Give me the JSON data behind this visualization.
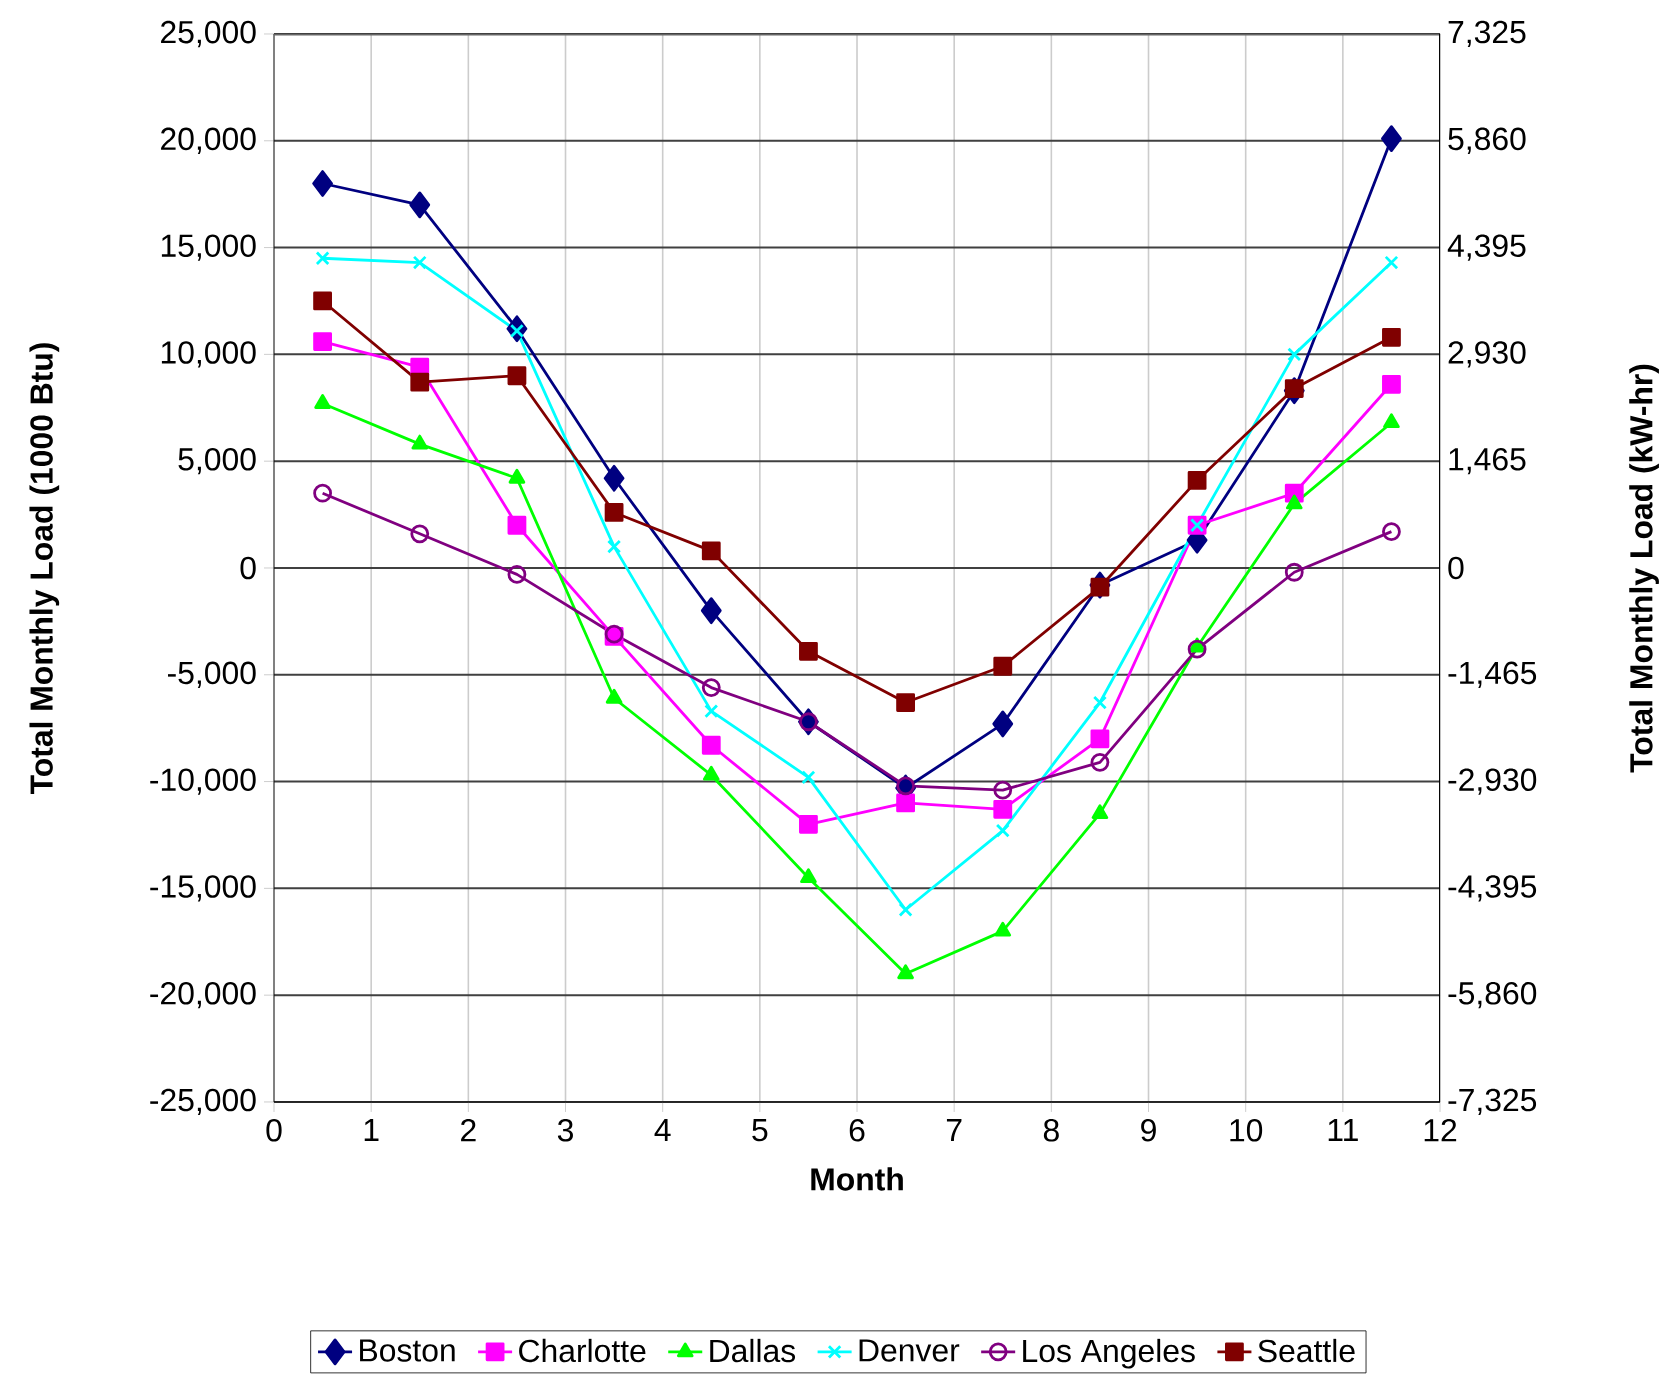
{
  "chart_data": {
    "type": "line",
    "xlabel": "Month",
    "ylabel": "Total Monthly Load (1000 Btu)",
    "y2label": "Total Monthly Load (kW-hr)",
    "x": [
      0.5,
      1.5,
      2.5,
      3.5,
      4.5,
      5.5,
      6.5,
      7.5,
      8.5,
      9.5,
      10.5,
      11.5
    ],
    "xlim": [
      0,
      12
    ],
    "xticks": [
      0,
      1,
      2,
      3,
      4,
      5,
      6,
      7,
      8,
      9,
      10,
      11,
      12
    ],
    "ylim": [
      -25000,
      25000
    ],
    "yticks": [
      {
        "value": -25000,
        "label": "-25,000"
      },
      {
        "value": -20000,
        "label": "-20,000"
      },
      {
        "value": -15000,
        "label": "-15,000"
      },
      {
        "value": -10000,
        "label": "-10,000"
      },
      {
        "value": -5000,
        "label": "-5,000"
      },
      0,
      {
        "value": 5000,
        "label": "5,000"
      },
      {
        "value": 10000,
        "label": "10,000"
      },
      {
        "value": 15000,
        "label": "15,000"
      },
      {
        "value": 20000,
        "label": "20,000"
      },
      {
        "value": 25000,
        "label": "25,000"
      }
    ],
    "y2lim": [
      -7325,
      7325
    ],
    "y2ticks": [
      {
        "value": -7325,
        "label": "-7,325"
      },
      {
        "value": -5860,
        "label": "-5,860"
      },
      {
        "value": -4395,
        "label": "-4,395"
      },
      {
        "value": -2930,
        "label": "-2,930"
      },
      {
        "value": -1465,
        "label": "-1,465"
      },
      0,
      {
        "value": 1465,
        "label": "1,465"
      },
      {
        "value": 2930,
        "label": "2,930"
      },
      {
        "value": 4395,
        "label": "4,395"
      },
      {
        "value": 5860,
        "label": "5,860"
      },
      {
        "value": 7325,
        "label": "7,325"
      }
    ],
    "grid": true,
    "legend": "bottom",
    "line_style": "solid",
    "series": [
      {
        "name": "Boston",
        "color": "#000080",
        "marker": "diamond",
        "values": [
          18000,
          17000,
          11200,
          4200,
          -2000,
          -7200,
          -10300,
          -7300,
          -800,
          1300,
          8300,
          20100
        ]
      },
      {
        "name": "Charlotte",
        "color": "#ff00ff",
        "marker": "square",
        "values": [
          10600,
          9400,
          2000,
          -3200,
          -8300,
          -12000,
          -11000,
          -11300,
          -8000,
          2000,
          3500,
          8600
        ]
      },
      {
        "name": "Dallas",
        "color": "#00ff00",
        "marker": "triangle",
        "values": [
          7700,
          5800,
          4200,
          -6100,
          -9700,
          -14500,
          -19000,
          -17000,
          -11500,
          -3700,
          3000,
          6800
        ]
      },
      {
        "name": "Denver",
        "color": "#00ffff",
        "marker": "cross",
        "values": [
          14500,
          14300,
          11100,
          1000,
          -6700,
          -9800,
          -16000,
          -12300,
          -6300,
          2000,
          10000,
          14300
        ]
      },
      {
        "name": "Los Angeles",
        "color": "#800080",
        "marker": "circle",
        "values": [
          3500,
          1600,
          -300,
          -3100,
          -5600,
          -7200,
          -10200,
          -10400,
          -9100,
          -3800,
          -200,
          1700
        ]
      },
      {
        "name": "Seattle",
        "color": "#800000",
        "marker": "square",
        "values": [
          12500,
          8700,
          9000,
          2600,
          800,
          -3900,
          -6300,
          -4600,
          -900,
          4100,
          8400,
          10800
        ]
      }
    ]
  }
}
